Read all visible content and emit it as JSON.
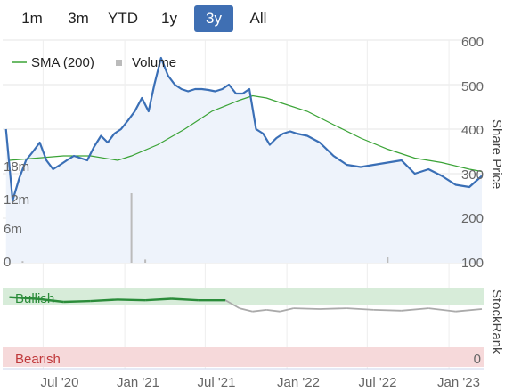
{
  "range_selector": {
    "buttons": [
      {
        "label": "1m",
        "active": false
      },
      {
        "label": "3m",
        "active": false
      },
      {
        "label": "YTD",
        "active": false
      },
      {
        "label": "1y",
        "active": false
      },
      {
        "label": "3y",
        "active": true
      },
      {
        "label": "All",
        "active": false
      }
    ]
  },
  "colors": {
    "price_line": "#3a6fb6",
    "sma_line": "#3aa336",
    "area_fill": "#eef3fb",
    "volume_bar": "#bbbbbb",
    "bullish_fill": "#d7ecd9",
    "bearish_fill": "#f6d9da",
    "stockrank_bullish": "#2b8c3a",
    "stockrank_neutral": "#aaaaaa"
  },
  "chart_data": [
    {
      "type": "line",
      "legend": [
        "SMA (200)",
        "Volume"
      ],
      "legend_placement": "top-left",
      "ylabel": "Share Price",
      "y_ticks": [
        "600",
        "500",
        "400",
        "300",
        "200",
        "100"
      ],
      "ylim": [
        100,
        600
      ],
      "volume_ticks": [
        "18m",
        "12m",
        "6m",
        "0"
      ],
      "volume_ylim": [
        0,
        18
      ],
      "x_ticks": [
        "Jul '20",
        "Jan '21",
        "Jul '21",
        "Jan '22",
        "Jul '22",
        "Jan '23"
      ],
      "xlim": [
        "2020-04",
        "2023-03"
      ],
      "series": [
        {
          "name": "Share Price",
          "x": [
            "2020-04",
            "2020-04",
            "2020-05",
            "2020-05",
            "2020-06",
            "2020-06",
            "2020-07",
            "2020-07",
            "2020-08",
            "2020-08",
            "2020-09",
            "2020-09",
            "2020-10",
            "2020-10",
            "2020-11",
            "2020-11",
            "2020-12",
            "2020-12",
            "2021-01",
            "2021-01",
            "2021-02",
            "2021-02",
            "2021-03",
            "2021-03",
            "2021-04",
            "2021-04",
            "2021-05",
            "2021-05",
            "2021-06",
            "2021-06",
            "2021-07",
            "2021-07",
            "2021-08",
            "2021-08",
            "2021-09",
            "2021-09",
            "2021-10",
            "2021-10",
            "2021-11",
            "2021-11",
            "2021-12",
            "2021-12",
            "2022-01",
            "2022-01",
            "2022-02",
            "2022-03",
            "2022-04",
            "2022-05",
            "2022-06",
            "2022-07",
            "2022-08",
            "2022-09",
            "2022-10",
            "2022-11",
            "2022-12",
            "2023-01",
            "2023-02",
            "2023-03"
          ],
          "values": [
            400,
            240,
            290,
            330,
            350,
            370,
            330,
            310,
            320,
            330,
            340,
            335,
            330,
            360,
            385,
            370,
            390,
            400,
            420,
            440,
            470,
            440,
            500,
            560,
            520,
            500,
            490,
            485,
            490,
            490,
            488,
            485,
            490,
            500,
            480,
            480,
            490,
            400,
            390,
            365,
            380,
            390,
            395,
            390,
            385,
            370,
            340,
            320,
            315,
            320,
            325,
            330,
            300,
            310,
            295,
            275,
            270,
            295
          ]
        },
        {
          "name": "SMA (200)",
          "x": [
            "2020-04",
            "2020-06",
            "2020-08",
            "2020-10",
            "2020-12",
            "2021-01",
            "2021-03",
            "2021-05",
            "2021-07",
            "2021-09",
            "2021-10",
            "2021-11",
            "2021-12",
            "2022-02",
            "2022-04",
            "2022-06",
            "2022-08",
            "2022-10",
            "2022-12",
            "2023-02",
            "2023-03"
          ],
          "values": [
            330,
            335,
            340,
            340,
            330,
            340,
            365,
            400,
            440,
            465,
            475,
            470,
            460,
            440,
            410,
            380,
            355,
            335,
            325,
            310,
            305
          ]
        },
        {
          "name": "Volume",
          "type": "bar",
          "x": [
            "2020-05",
            "2021-01",
            "2021-02",
            "2022-08"
          ],
          "values": [
            0.3,
            13.0,
            0.6,
            1.0
          ]
        }
      ]
    },
    {
      "type": "line",
      "ylabel": "StockRank",
      "zones": [
        "Bullish",
        "Bearish"
      ],
      "y_ticks": [
        "0"
      ],
      "ylim": [
        0,
        100
      ],
      "series": [
        {
          "name": "StockRank",
          "x": [
            "2020-04",
            "2020-06",
            "2020-08",
            "2020-10",
            "2020-12",
            "2021-02",
            "2021-04",
            "2021-06",
            "2021-08",
            "2021-09",
            "2021-10",
            "2021-11",
            "2021-12",
            "2022-01",
            "2022-03",
            "2022-05",
            "2022-07",
            "2022-09",
            "2022-11",
            "2023-01",
            "2023-03"
          ],
          "values": [
            88,
            86,
            82,
            83,
            85,
            84,
            86,
            84,
            84,
            74,
            70,
            72,
            70,
            74,
            73,
            74,
            72,
            71,
            74,
            70,
            73
          ]
        }
      ]
    }
  ]
}
